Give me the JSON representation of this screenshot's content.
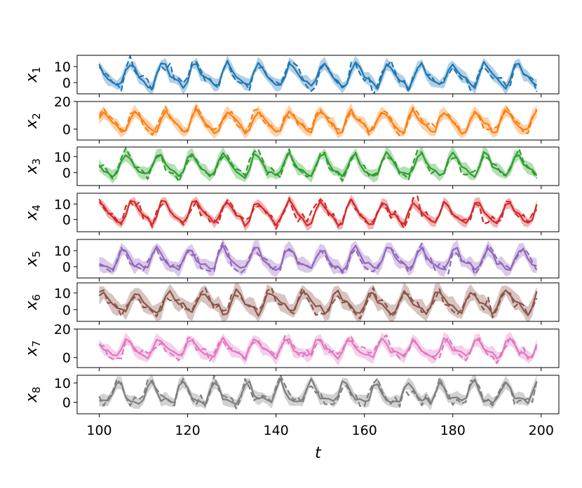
{
  "chart_data": {
    "type": "line",
    "xlabel": "t",
    "xlim": [
      95,
      204
    ],
    "xticks": [
      100,
      120,
      140,
      160,
      180,
      200
    ],
    "x_start": 100,
    "x_end": 199,
    "legend": "none",
    "grid": false,
    "series": [
      {
        "label": "x",
        "sub": "1",
        "color": "#1f77b4",
        "ylim": [
          -7,
          17
        ],
        "yticks": [
          0,
          10
        ],
        "period": 7.3,
        "phase": 1.5,
        "amp": 6.5,
        "offset": 4,
        "band": 3.0
      },
      {
        "label": "x",
        "sub": "2",
        "color": "#ff7f0e",
        "ylim": [
          -8,
          20
        ],
        "yticks": [
          0,
          20
        ],
        "period": 7.0,
        "phase": 0.3,
        "amp": 7.0,
        "offset": 5,
        "band": 3.5
      },
      {
        "label": "x",
        "sub": "3",
        "color": "#2ca02c",
        "ylim": [
          -8,
          16
        ],
        "yticks": [
          0,
          10
        ],
        "period": 7.4,
        "phase": 2.6,
        "amp": 6.5,
        "offset": 4,
        "band": 3.0
      },
      {
        "label": "x",
        "sub": "4",
        "color": "#d62728",
        "ylim": [
          -8,
          17
        ],
        "yticks": [
          0,
          10
        ],
        "period": 7.1,
        "phase": 1.0,
        "amp": 6.5,
        "offset": 4,
        "band": 2.5
      },
      {
        "label": "x",
        "sub": "5",
        "color": "#9467bd",
        "ylim": [
          -7,
          17
        ],
        "yticks": [
          0,
          10
        ],
        "period": 7.5,
        "phase": 3.1,
        "amp": 6.0,
        "offset": 4,
        "band": 3.5
      },
      {
        "label": "x",
        "sub": "6",
        "color": "#8c564b",
        "ylim": [
          -7,
          16
        ],
        "yticks": [
          0,
          10
        ],
        "period": 7.6,
        "phase": 0.6,
        "amp": 5.5,
        "offset": 4,
        "band": 4.0
      },
      {
        "label": "x",
        "sub": "7",
        "color": "#e377c2",
        "ylim": [
          -7,
          20
        ],
        "yticks": [
          0,
          20
        ],
        "period": 7.2,
        "phase": 2.0,
        "amp": 5.5,
        "offset": 6,
        "band": 3.5
      },
      {
        "label": "x",
        "sub": "8",
        "color": "#7f7f7f",
        "ylim": [
          -6,
          14
        ],
        "yticks": [
          0,
          10
        ],
        "period": 7.3,
        "phase": 4.0,
        "amp": 5.0,
        "offset": 4,
        "band": 2.5
      }
    ]
  }
}
